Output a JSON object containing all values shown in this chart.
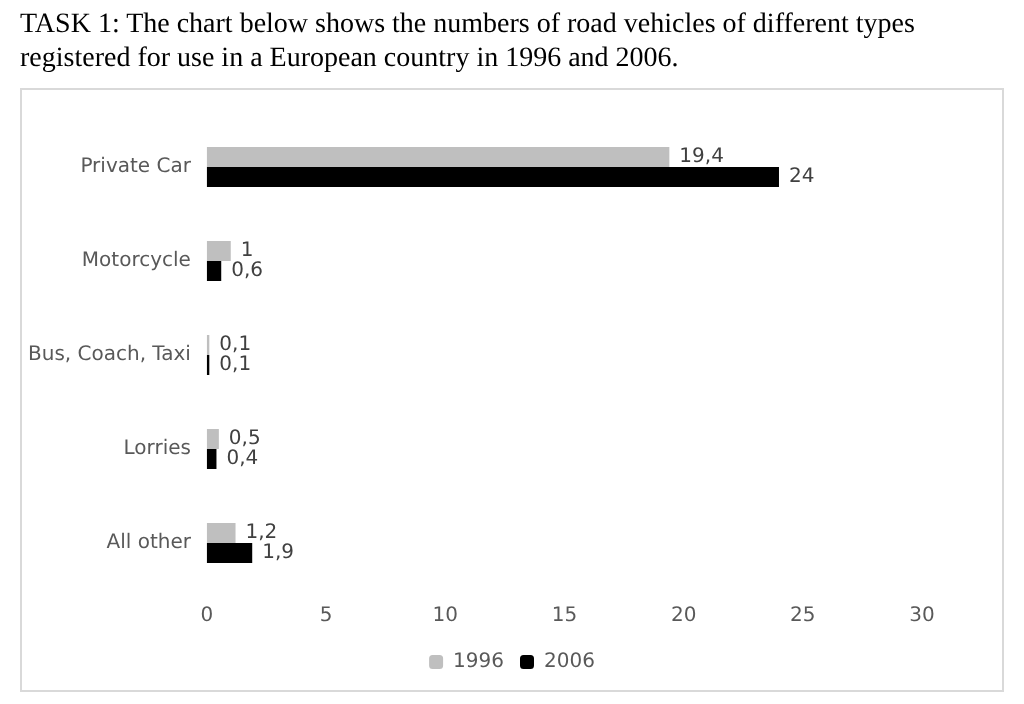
{
  "chart_data": {
    "type": "bar",
    "orientation": "horizontal",
    "title": "TASK 1: The chart below shows the numbers of road vehicles of different types registered for use in a European country in 1996 and 2006.",
    "categories": [
      "Private Car",
      "Motorcycle",
      "Bus, Coach, Taxi",
      "Lorries",
      "All other"
    ],
    "series": [
      {
        "name": "1996",
        "color": "#bfbfbf",
        "values": [
          19.4,
          1,
          0.1,
          0.5,
          1.2
        ],
        "value_labels": [
          "19,4",
          "1",
          "0,1",
          "0,5",
          "1,2"
        ]
      },
      {
        "name": "2006",
        "color": "#000000",
        "values": [
          24,
          0.6,
          0.1,
          0.4,
          1.9
        ],
        "value_labels": [
          "24",
          "0,6",
          "0,1",
          "0,4",
          "1,9"
        ]
      }
    ],
    "xlim": [
      0,
      30
    ],
    "xticks": [
      0,
      5,
      10,
      15,
      20,
      25,
      30
    ],
    "grid": false,
    "legend": "bottom"
  }
}
